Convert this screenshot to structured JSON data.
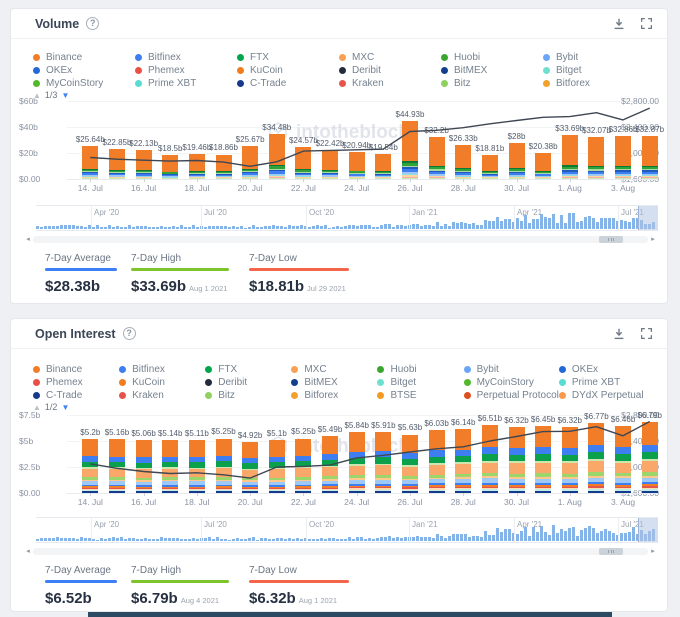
{
  "watermark_text": "intotheblock",
  "icons": {
    "pager_up": "▲",
    "pager_down": "▼",
    "scroll_left": "◂",
    "scroll_right": "▸"
  },
  "panels": [
    {
      "title": "Volume",
      "legend_page": "1/3",
      "legend": [
        {
          "label": "Binance",
          "color": "#f27d28"
        },
        {
          "label": "Bitfinex",
          "color": "#3f7ef0"
        },
        {
          "label": "FTX",
          "color": "#02a44e"
        },
        {
          "label": "MXC",
          "color": "#f9a055"
        },
        {
          "label": "Huobi",
          "color": "#3aa52f"
        },
        {
          "label": "Bybit",
          "color": "#6ba5f5"
        },
        {
          "label": "OKEx",
          "color": "#2467d6"
        },
        {
          "label": "Phemex",
          "color": "#ec4f44"
        },
        {
          "label": "KuCoin",
          "color": "#f07c1e"
        },
        {
          "label": "Deribit",
          "color": "#232c3d"
        },
        {
          "label": "BitMEX",
          "color": "#143f8c"
        },
        {
          "label": "Bitget",
          "color": "#6fe0d0"
        },
        {
          "label": "MyCoinStory",
          "color": "#54b82d"
        },
        {
          "label": "Prime XBT",
          "color": "#5adbd3"
        },
        {
          "label": "C-Trade",
          "color": "#16398c"
        },
        {
          "label": "Kraken",
          "color": "#e4544b"
        },
        {
          "label": "Bitz",
          "color": "#8fd05f"
        },
        {
          "label": "Bitforex",
          "color": "#f2a12d"
        }
      ],
      "stats": [
        {
          "label": "7-Day Average",
          "value": "$28.38b",
          "date": "",
          "color": "#3d7ff5"
        },
        {
          "label": "7-Day High",
          "value": "$33.69b",
          "date": "Aug 1 2021",
          "color": "#7ec42c"
        },
        {
          "label": "7-Day Low",
          "value": "$18.81b",
          "date": "Jul 29 2021",
          "color": "#f4664a"
        }
      ]
    },
    {
      "title": "Open Interest",
      "legend_page": "1/2",
      "legend": [
        {
          "label": "Binance",
          "color": "#f27d28"
        },
        {
          "label": "Bitfinex",
          "color": "#3f7ef0"
        },
        {
          "label": "FTX",
          "color": "#02a44e"
        },
        {
          "label": "MXC",
          "color": "#f9a055"
        },
        {
          "label": "Huobi",
          "color": "#3aa52f"
        },
        {
          "label": "Bybit",
          "color": "#6ba5f5"
        },
        {
          "label": "OKEx",
          "color": "#2467d6"
        },
        {
          "label": "Phemex",
          "color": "#ec4f44"
        },
        {
          "label": "KuCoin",
          "color": "#f07c1e"
        },
        {
          "label": "Deribit",
          "color": "#232c3d"
        },
        {
          "label": "BitMEX",
          "color": "#143f8c"
        },
        {
          "label": "Bitget",
          "color": "#6fe0d0"
        },
        {
          "label": "MyCoinStory",
          "color": "#54b82d"
        },
        {
          "label": "Prime XBT",
          "color": "#5adbd3"
        },
        {
          "label": "C-Trade",
          "color": "#16398c"
        },
        {
          "label": "Kraken",
          "color": "#e4544b"
        },
        {
          "label": "Bitz",
          "color": "#8fd05f"
        },
        {
          "label": "Bitforex",
          "color": "#f2a12d"
        },
        {
          "label": "BTSE",
          "color": "#f29a23"
        },
        {
          "label": "Perpetual Protocol",
          "color": "#dd4f1d"
        },
        {
          "label": "DYdX Perpetual",
          "color": "#f79a4f"
        }
      ],
      "stats": [
        {
          "label": "7-Day Average",
          "value": "$6.52b",
          "date": "",
          "color": "#3d7ff5"
        },
        {
          "label": "7-Day High",
          "value": "$6.79b",
          "date": "Aug 4 2021",
          "color": "#7ec42c"
        },
        {
          "label": "7-Day Low",
          "value": "$6.32b",
          "date": "Aug 1 2021",
          "color": "#f4664a"
        }
      ]
    }
  ],
  "chart_data": [
    {
      "type": "bar",
      "stacked": true,
      "title": "Volume",
      "x": [
        "14 Jul",
        "15 Jul",
        "16 Jul",
        "17 Jul",
        "18 Jul",
        "19 Jul",
        "20 Jul",
        "21 Jul",
        "22 Jul",
        "23 Jul",
        "24 Jul",
        "25 Jul",
        "26 Jul",
        "27 Jul",
        "28 Jul",
        "29 Jul",
        "30 Jul",
        "31 Jul",
        "1 Aug",
        "2 Aug",
        "3 Aug",
        "4 Aug"
      ],
      "values_billions": [
        25.64,
        22.85,
        22.13,
        18.5,
        19.46,
        18.86,
        25.67,
        34.48,
        24.57,
        22.42,
        20.94,
        19.54,
        44.93,
        32.2,
        26.33,
        18.81,
        28,
        20.38,
        33.69,
        32.07,
        32.86,
        32.87
      ],
      "bar_labels": [
        "$25.64b",
        "$22.85b",
        "$22.13b",
        "$18.5b",
        "$19.46b",
        "$18.86b",
        "$25.67b",
        "$34.48b",
        "$24.57b",
        "$22.42b",
        "$20.94b",
        "$19.54b",
        "$44.93b",
        "$32.2b",
        "$26.33b",
        "$18.81b",
        "$28b",
        "$20.38b",
        "$33.69b",
        "$32.07b",
        "$32.86b",
        "$32.87b"
      ],
      "x_tick_labels": [
        "14. Jul",
        "16. Jul",
        "18. Jul",
        "20. Jul",
        "22. Jul",
        "24. Jul",
        "26. Jul",
        "28. Jul",
        "30. Jul",
        "1. Aug",
        "3. Aug"
      ],
      "y_left_ticks": [
        "$60b",
        "$40b",
        "$20b",
        "$0.00"
      ],
      "y_left_max": 60,
      "y_right_ticks": [
        "$2,800.00",
        "$2,400.00",
        "$2,000.00",
        "$1,600.00"
      ],
      "y_right_range": [
        1600,
        2800
      ],
      "price_line": [
        1930,
        1905,
        1890,
        1875,
        1885,
        1860,
        1795,
        1865,
        2030,
        2040,
        2050,
        2060,
        2330,
        2350,
        2390,
        2450,
        2500,
        2550,
        2560,
        2620,
        2510,
        2690
      ],
      "scrubber_labels": [
        "Apr '20",
        "Jul '20",
        "Oct '20",
        "Jan '21",
        "Apr '21",
        "Jul '21"
      ],
      "stack_profile": [
        {
          "c": "#cde6b0",
          "f": 0.022
        },
        {
          "c": "#f5b1a9",
          "f": 0.018
        },
        {
          "c": "#ffd59e",
          "f": 0.022
        },
        {
          "c": "#8fdee8",
          "f": 0.022
        },
        {
          "c": "#9ec9f7",
          "f": 0.038
        },
        {
          "c": "#3f7ef0",
          "f": 0.05
        },
        {
          "c": "#1f5bbf",
          "f": 0.028
        },
        {
          "c": "#a8d9a0",
          "f": 0.03
        },
        {
          "c": "#2fa23c",
          "f": 0.05
        },
        {
          "c": "#0b7a33",
          "f": 0.03
        },
        {
          "c": "#f27d28",
          "f": 0.69
        }
      ]
    },
    {
      "type": "bar",
      "stacked": true,
      "title": "Open Interest",
      "x": [
        "14 Jul",
        "15 Jul",
        "16 Jul",
        "17 Jul",
        "18 Jul",
        "19 Jul",
        "20 Jul",
        "21 Jul",
        "22 Jul",
        "23 Jul",
        "24 Jul",
        "25 Jul",
        "26 Jul",
        "27 Jul",
        "28 Jul",
        "29 Jul",
        "30 Jul",
        "31 Jul",
        "1 Aug",
        "2 Aug",
        "3 Aug",
        "4 Aug"
      ],
      "values_billions": [
        5.2,
        5.16,
        5.06,
        5.14,
        5.11,
        5.25,
        4.92,
        5.1,
        5.25,
        5.49,
        5.84,
        5.91,
        5.63,
        6.03,
        6.14,
        6.51,
        6.32,
        6.45,
        6.32,
        6.77,
        6.46,
        6.79
      ],
      "bar_labels": [
        "$5.2b",
        "$5.16b",
        "$5.06b",
        "$5.14b",
        "$5.11b",
        "$5.25b",
        "$4.92b",
        "$5.1b",
        "$5.25b",
        "$5.49b",
        "$5.84b",
        "$5.91b",
        "$5.63b",
        "$6.03b",
        "$6.14b",
        "$6.51b",
        "$6.32b",
        "$6.45b",
        "$6.32b",
        "$6.77b",
        "$6.46b",
        "$6.79b"
      ],
      "x_tick_labels": [
        "14. Jul",
        "16. Jul",
        "18. Jul",
        "20. Jul",
        "22. Jul",
        "24. Jul",
        "26. Jul",
        "28. Jul",
        "30. Jul",
        "1. Aug",
        "3. Aug"
      ],
      "y_left_ticks": [
        "$7.5b",
        "$5b",
        "$2.5b",
        "$0.00"
      ],
      "y_left_max": 7.5,
      "y_right_ticks": [
        "$2,800.00",
        "$2,400.00",
        "$2,000.00",
        "$1,600.00"
      ],
      "y_right_range": [
        1600,
        2800
      ],
      "price_line": [
        2050,
        1980,
        1930,
        1900,
        1910,
        1880,
        1830,
        2000,
        2010,
        2030,
        2140,
        2180,
        2230,
        2280,
        2310,
        2400,
        2470,
        2545,
        2550,
        2620,
        2480,
        2700
      ],
      "scrubber_labels": [
        "Apr '20",
        "Jul '20",
        "Oct '20",
        "Jan '21",
        "Apr '21",
        "Jul '21"
      ],
      "stack_profile": [
        {
          "c": "#16398c",
          "f": 0.035
        },
        {
          "c": "#bfeee8",
          "f": 0.02
        },
        {
          "c": "#ffdcb0",
          "f": 0.02
        },
        {
          "c": "#e4544b",
          "f": 0.02
        },
        {
          "c": "#f27d28",
          "f": 0.027
        },
        {
          "c": "#3f7ef0",
          "f": 0.03
        },
        {
          "c": "#9ec9f7",
          "f": 0.065
        },
        {
          "c": "#ffc98e",
          "f": 0.03
        },
        {
          "c": "#9bd56b",
          "f": 0.045
        },
        {
          "c": "#f9a869",
          "f": 0.16
        },
        {
          "c": "#cde6b0",
          "f": 0.028
        },
        {
          "c": "#0ba04c",
          "f": 0.1
        },
        {
          "c": "#3f7ef0",
          "f": 0.1
        },
        {
          "c": "#f27d28",
          "f": 0.32
        }
      ]
    }
  ]
}
